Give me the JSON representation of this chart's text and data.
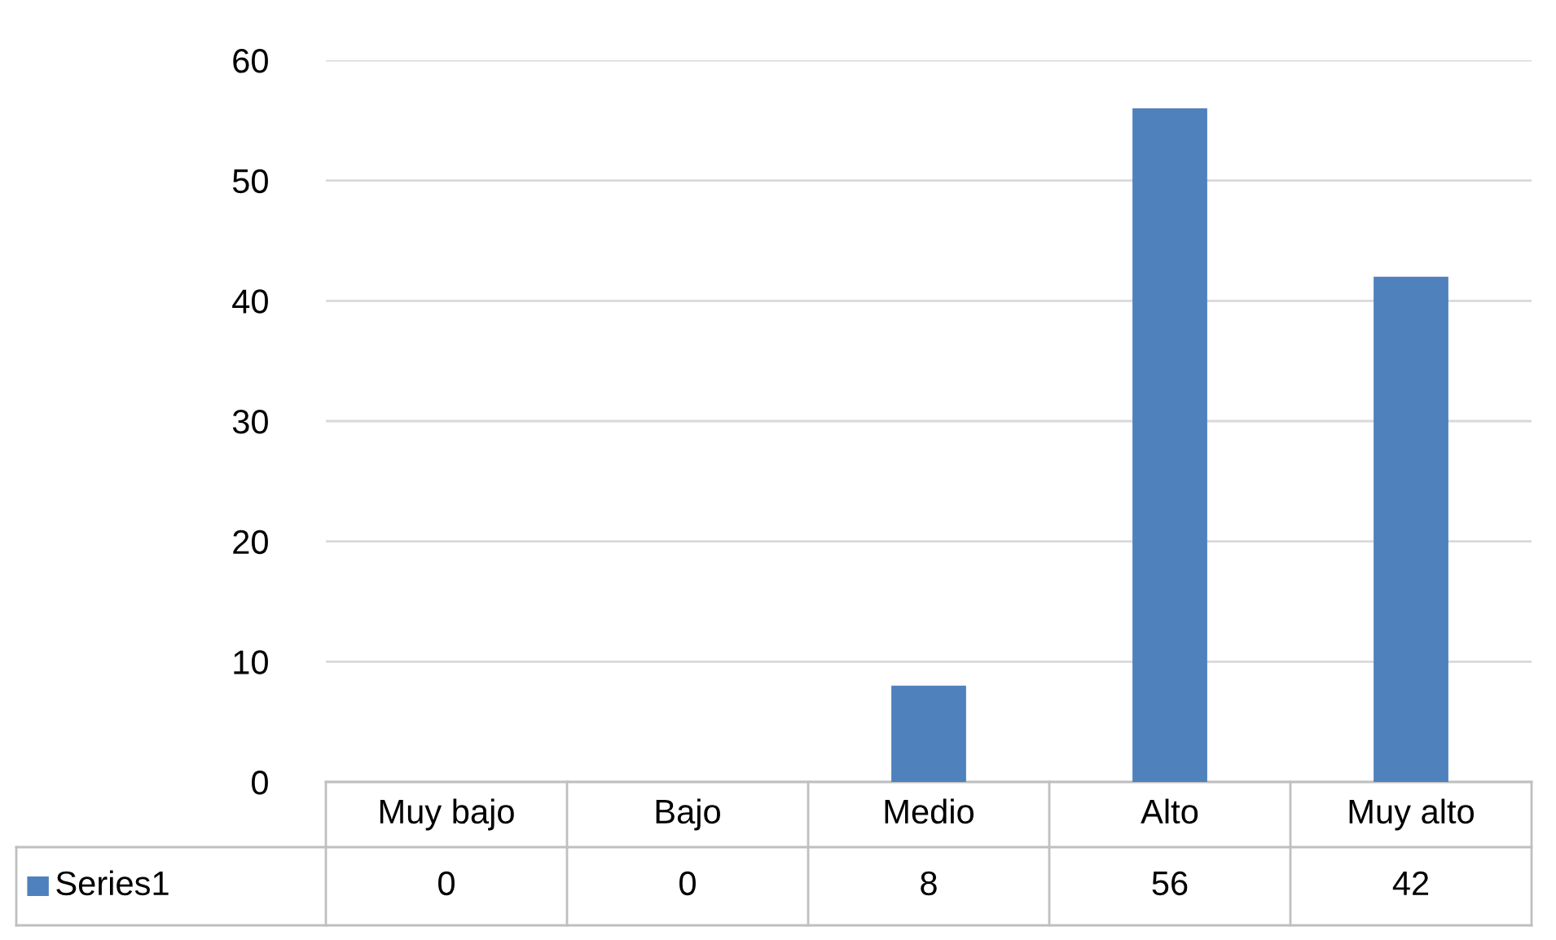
{
  "chart_data": {
    "type": "bar",
    "categories": [
      "Muy bajo",
      "Bajo",
      "Medio",
      "Alto",
      "Muy alto"
    ],
    "series": [
      {
        "name": "Series1",
        "color": "#4f81bd",
        "values": [
          0,
          0,
          8,
          56,
          42
        ]
      }
    ],
    "ylim": [
      0,
      60
    ],
    "yticks": [
      0,
      10,
      20,
      30,
      40,
      50,
      60
    ],
    "grid": "y",
    "data_labels": true,
    "legend": "bottom"
  }
}
